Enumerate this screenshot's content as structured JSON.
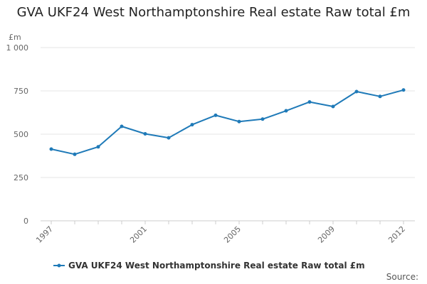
{
  "chart_data": {
    "type": "line",
    "title": "GVA UKF24 West Northamptonshire Real estate Raw total £m",
    "ylabel": "£m",
    "xlabel": "",
    "ylim": [
      0,
      1000
    ],
    "yticks": [
      0,
      250,
      500,
      750,
      1000
    ],
    "ytick_labels": [
      "0",
      "250",
      "500",
      "750",
      "1 000"
    ],
    "xticks": [
      1997,
      2001,
      2005,
      2009,
      2012
    ],
    "xtick_labels": [
      "1997",
      "2001",
      "2005",
      "2009",
      "2012"
    ],
    "grid": true,
    "legend_position": "bottom",
    "series": [
      {
        "name": "GVA UKF24 West Northamptonshire Real estate Raw total £m",
        "color": "#1f7ab8",
        "x": [
          1997,
          1998,
          1999,
          2000,
          2001,
          2002,
          2003,
          2004,
          2005,
          2006,
          2007,
          2008,
          2009,
          2010,
          2011,
          2012
        ],
        "values": [
          414,
          384,
          427,
          545,
          502,
          479,
          555,
          609,
          573,
          587,
          635,
          686,
          660,
          746,
          718,
          755
        ]
      }
    ]
  },
  "footer": {
    "source_label": "Source:"
  }
}
